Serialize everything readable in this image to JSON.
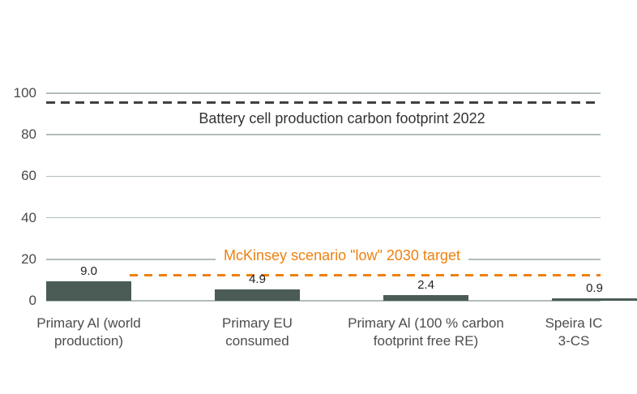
{
  "chart_data": {
    "type": "bar",
    "title": "",
    "xlabel": "",
    "ylabel": "",
    "ylim": [
      0,
      100
    ],
    "grid": true,
    "y_ticks": [
      "100",
      "80",
      "60",
      "40",
      "20",
      "0"
    ],
    "y_tick_values": [
      100,
      80,
      60,
      40,
      20,
      0
    ],
    "categories": [
      [
        "Primary Al (world",
        "production)"
      ],
      [
        "Primary EU",
        "consumed"
      ],
      [
        "Primary Al (100 % carbon",
        "footprint free RE)"
      ],
      [
        "Speira IC",
        "3-CS"
      ]
    ],
    "values": [
      9.0,
      4.9,
      2.4,
      0.9
    ],
    "value_labels": [
      "9.0",
      "4.9",
      "2.4",
      "0.9"
    ],
    "bar_color": "#4a5c55",
    "reference_lines": [
      {
        "name": "battery",
        "label": "Battery cell production carbon footprint 2022",
        "value": 95.5,
        "color": "#3e4144",
        "style": "dashed"
      },
      {
        "name": "target",
        "label": "McKinsey scenario \"low\" 2030 target",
        "value": 12.5,
        "color": "#ee800f",
        "style": "dashed"
      }
    ]
  },
  "colors": {
    "background": "#ffffff",
    "gridline": "#b2bdb9",
    "bar": "#4a5c55",
    "accent_orange": "#ee800f",
    "dark_line": "#3e4144",
    "axis_text": "#4a4a4a",
    "category_text": "#4d4d4d",
    "value_text": "#222222"
  }
}
